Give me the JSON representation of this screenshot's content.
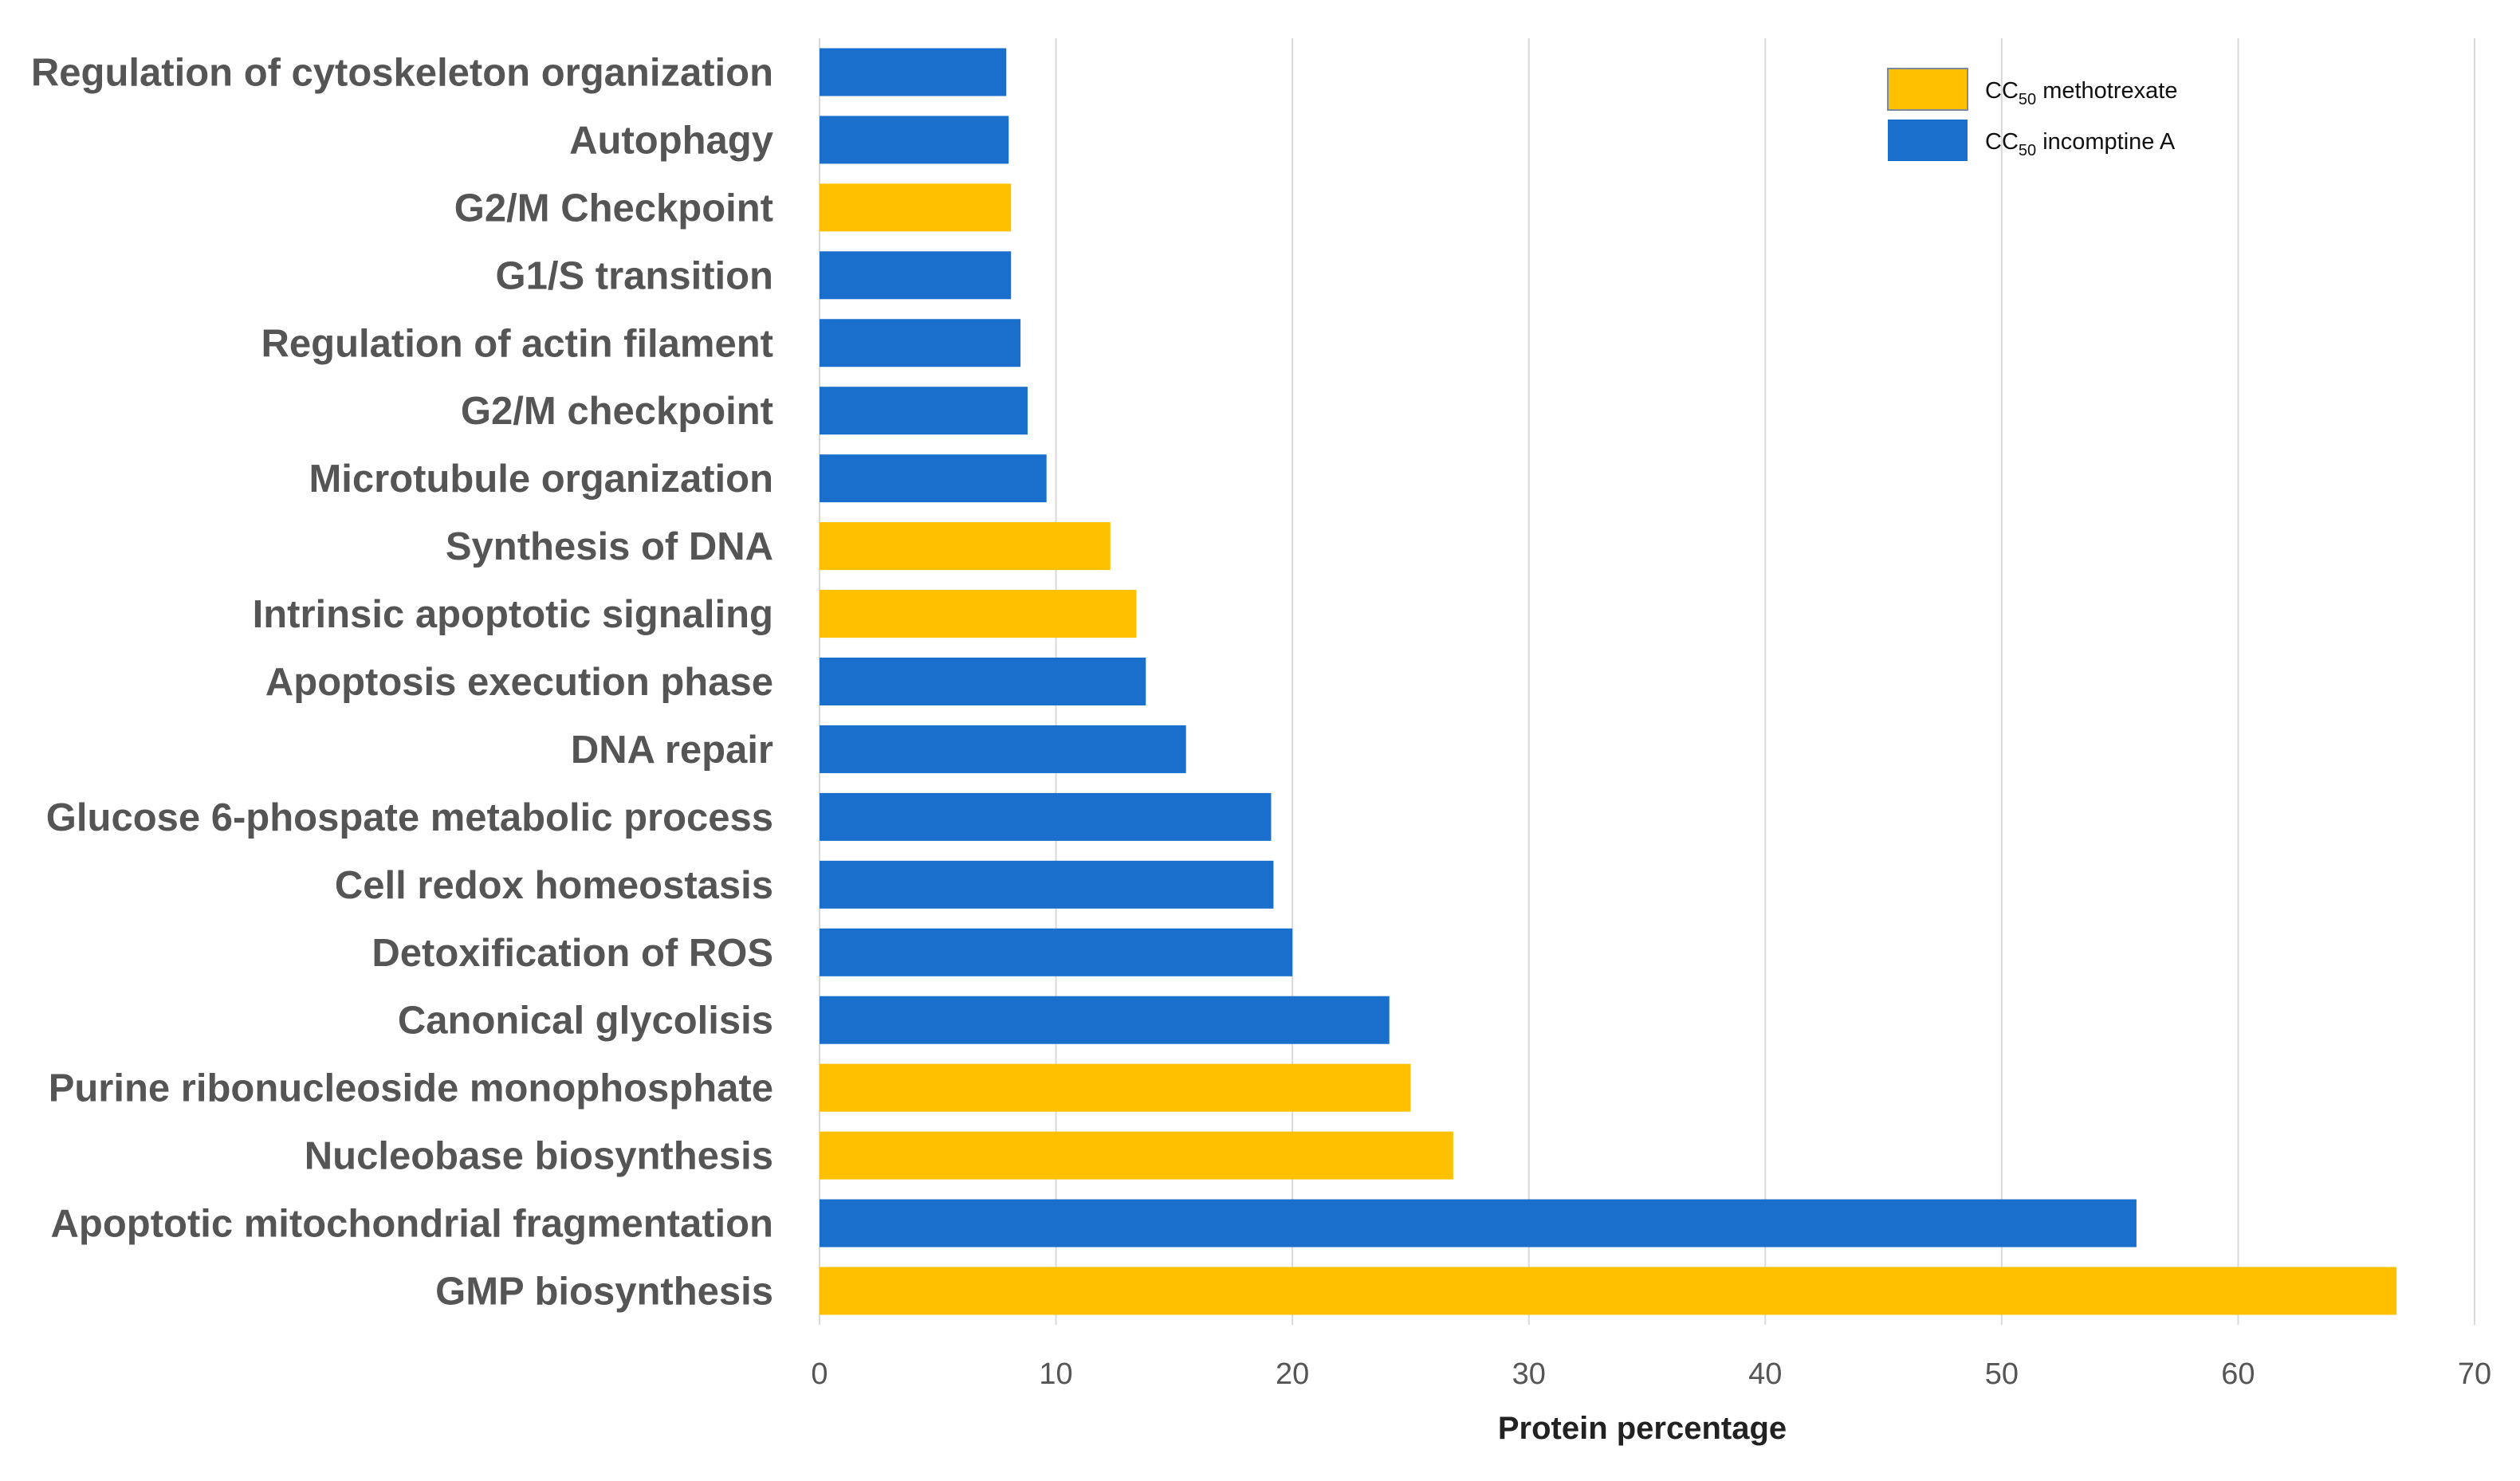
{
  "chart_data": {
    "type": "bar",
    "orientation": "horizontal",
    "title": "",
    "xlabel": "Protein percentage",
    "ylabel": "",
    "xlim": [
      0,
      70
    ],
    "x_ticks": [
      0,
      10,
      20,
      30,
      40,
      50,
      60,
      70
    ],
    "grid": "vertical",
    "legend_position": "top-right",
    "series": [
      {
        "name": "CC50 methotrexate",
        "label_main": "CC",
        "label_sub": "50",
        "label_rest": " methotrexate",
        "color": "#FFC000"
      },
      {
        "name": "CC50 incomptine A",
        "label_main": "CC",
        "label_sub": "50",
        "label_rest": " incomptine A",
        "color": "#1A6FCC"
      }
    ],
    "categories": [
      "Regulation of cytoskeleton organization",
      "Autophagy",
      "G2/M Checkpoint",
      "G1/S transition",
      "Regulation of actin filament",
      "G2/M checkpoint",
      "Microtubule organization",
      "Synthesis of DNA",
      "Intrinsic apoptotic signaling",
      "Apoptosis execution phase",
      "DNA repair",
      "Glucose 6-phospate metabolic process",
      "Cell redox homeostasis",
      "Detoxification of ROS",
      "Canonical glycolisis",
      "Purine ribonucleoside monophosphate",
      "Nucleobase biosynthesis",
      "Apoptotic mitochondrial fragmentation",
      "GMP biosynthesis"
    ],
    "values": [
      7.9,
      8.0,
      8.1,
      8.1,
      8.5,
      8.8,
      9.6,
      12.3,
      13.4,
      13.8,
      15.5,
      19.1,
      19.2,
      20.0,
      24.1,
      25.0,
      26.8,
      55.7,
      66.7
    ],
    "series_index": [
      1,
      1,
      0,
      1,
      1,
      1,
      1,
      0,
      0,
      1,
      1,
      1,
      1,
      1,
      1,
      0,
      0,
      1,
      0
    ]
  }
}
